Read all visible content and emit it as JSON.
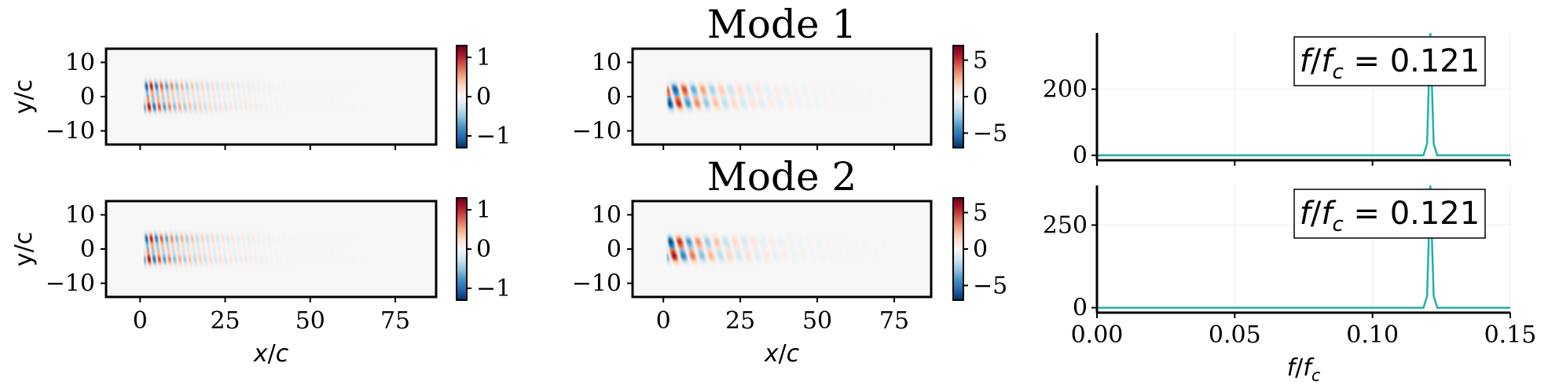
{
  "chart_data": [
    {
      "type": "heatmap",
      "panel": "row1-left",
      "title": "",
      "xlabel": "",
      "ylabel": "y/c",
      "xlim": [
        -10,
        87
      ],
      "ylim": [
        -14,
        14
      ],
      "xticks": [
        0,
        25,
        50,
        75
      ],
      "yticks": [
        10,
        0,
        -10
      ],
      "colorbar": {
        "cmap": "RdBu_r",
        "range": [
          -1.3,
          1.3
        ],
        "ticks": [
          1,
          0,
          -1
        ],
        "tick_labels": [
          "1",
          "0",
          "−1"
        ]
      },
      "field": {
        "wavelength": 3.0,
        "x_start": 1.0,
        "x_decay": 12,
        "core_amp": 1.3,
        "y_lobe": 3.0
      }
    },
    {
      "type": "heatmap",
      "panel": "row1-middle",
      "title": "Mode 1",
      "xlabel": "",
      "ylabel": "",
      "xlim": [
        -10,
        87
      ],
      "ylim": [
        -14,
        14
      ],
      "xticks": [
        0,
        25,
        50,
        75
      ],
      "yticks": [
        10,
        0,
        -10
      ],
      "colorbar": {
        "cmap": "RdBu_r",
        "range": [
          -7,
          7
        ],
        "ticks": [
          5,
          0,
          -5
        ],
        "tick_labels": [
          "5",
          "0",
          "−5"
        ]
      },
      "field": {
        "wavelength": 6.0,
        "x_start": 1.0,
        "x_decay": 13,
        "core_amp": 7,
        "y_lobe": 2.2
      }
    },
    {
      "type": "line",
      "panel": "row1-right",
      "title": "",
      "xlabel": "",
      "ylabel": "",
      "xlim": [
        0,
        0.15
      ],
      "ylim": [
        -15,
        370
      ],
      "xticks": [
        0,
        0.05,
        0.1,
        0.15
      ],
      "yticks": [
        0,
        200
      ],
      "grid": true,
      "annotation": "f/f_c = 0.121",
      "series": [
        {
          "color": "#20b2aa",
          "x": [
            0,
            0.1185,
            0.1198,
            0.121,
            0.1222,
            0.1235,
            0.15
          ],
          "y": [
            0,
            0,
            35,
            370,
            35,
            0,
            0
          ]
        }
      ]
    },
    {
      "type": "heatmap",
      "panel": "row2-left",
      "title": "",
      "xlabel": "x/c",
      "ylabel": "y/c",
      "xlim": [
        -10,
        87
      ],
      "ylim": [
        -14,
        14
      ],
      "xticks": [
        0,
        25,
        50,
        75
      ],
      "yticks": [
        10,
        0,
        -10
      ],
      "colorbar": {
        "cmap": "RdBu_r",
        "range": [
          -1.3,
          1.3
        ],
        "ticks": [
          1,
          0,
          -1
        ],
        "tick_labels": [
          "1",
          "0",
          "−1"
        ]
      },
      "field": {
        "wavelength": 3.0,
        "x_start": 1.0,
        "x_decay": 12,
        "core_amp": 1.3,
        "y_lobe": 3.0
      }
    },
    {
      "type": "heatmap",
      "panel": "row2-middle",
      "title": "Mode 2",
      "xlabel": "x/c",
      "ylabel": "",
      "xlim": [
        -10,
        87
      ],
      "ylim": [
        -14,
        14
      ],
      "xticks": [
        0,
        25,
        50,
        75
      ],
      "yticks": [
        10,
        0,
        -10
      ],
      "colorbar": {
        "cmap": "RdBu_r",
        "range": [
          -7,
          7
        ],
        "ticks": [
          5,
          0,
          -5
        ],
        "tick_labels": [
          "5",
          "0",
          "−5"
        ]
      },
      "field": {
        "wavelength": 6.0,
        "x_start": 1.0,
        "x_decay": 13,
        "core_amp": 7,
        "y_lobe": 2.2,
        "phase": 1.57
      }
    },
    {
      "type": "line",
      "panel": "row2-right",
      "title": "",
      "xlabel": "f/f_c",
      "ylabel": "",
      "xlim": [
        0,
        0.15
      ],
      "ylim": [
        -15,
        370
      ],
      "xticks": [
        0,
        0.05,
        0.1,
        0.15
      ],
      "xtick_labels": [
        "0.00",
        "0.05",
        "0.10",
        "0.15"
      ],
      "yticks": [
        0,
        250
      ],
      "grid": true,
      "annotation": "f/f_c = 0.121",
      "series": [
        {
          "color": "#20b2aa",
          "x": [
            0,
            0.1185,
            0.1198,
            0.121,
            0.1222,
            0.1235,
            0.15
          ],
          "y": [
            0,
            0,
            35,
            370,
            35,
            0,
            0
          ]
        }
      ]
    }
  ]
}
